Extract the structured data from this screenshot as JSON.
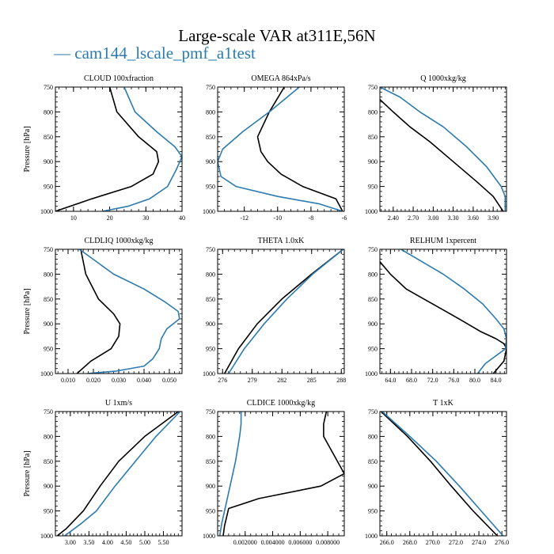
{
  "title": "Large-scale VAR at311E,56N",
  "legend_text": "— cam144_lscale_pmf_a1test",
  "colors": {
    "blue": "#2b7bb0",
    "black": "#000000"
  },
  "chart_data": [
    {
      "type": "line",
      "title": "CLOUD  100xfraction",
      "ylabel": "Pressure [hPa]",
      "xlim": [
        5,
        40
      ],
      "ylim": [
        1000,
        750
      ],
      "xticks": [
        10,
        20,
        30,
        40
      ],
      "xtick_labels": [
        "10",
        "20",
        "30",
        "40"
      ],
      "yticks": [
        750,
        800,
        850,
        900,
        950,
        1000
      ],
      "ytick_labels": [
        "750",
        "800",
        "850",
        "900",
        "950",
        "1000"
      ],
      "series": [
        {
          "name": "black",
          "x": [
            20,
            22,
            28,
            33,
            33.5,
            32,
            26,
            15,
            5
          ],
          "y": [
            750,
            800,
            850,
            880,
            900,
            925,
            950,
            975,
            1000
          ]
        },
        {
          "name": "blue",
          "x": [
            24,
            27,
            33,
            38,
            40,
            38.5,
            36,
            31,
            25,
            18
          ],
          "y": [
            750,
            800,
            840,
            870,
            890,
            915,
            950,
            975,
            990,
            1000
          ]
        }
      ]
    },
    {
      "type": "line",
      "title": "OMEGA  864xPa/s",
      "ylabel": "",
      "xlim": [
        -13.6,
        -6
      ],
      "ylim": [
        1000,
        750
      ],
      "xticks": [
        -12,
        -10,
        -8,
        -6
      ],
      "xtick_labels": [
        "-12",
        "-10",
        "-8",
        "-6"
      ],
      "yticks": [
        750,
        800,
        850,
        900,
        950,
        1000
      ],
      "ytick_labels": [
        "750",
        "800",
        "850",
        "900",
        "950",
        "1000"
      ],
      "series": [
        {
          "name": "black",
          "x": [
            -9.6,
            -10.5,
            -11.2,
            -11,
            -10.6,
            -9.8,
            -8.5,
            -6.5,
            -6.1
          ],
          "y": [
            750,
            800,
            850,
            880,
            900,
            925,
            950,
            975,
            1000
          ]
        },
        {
          "name": "blue",
          "x": [
            -8.7,
            -10.5,
            -12.1,
            -13.3,
            -13.6,
            -13.4,
            -12.5,
            -10,
            -7.5,
            -6.1
          ],
          "y": [
            750,
            800,
            840,
            875,
            900,
            930,
            950,
            970,
            985,
            1000
          ]
        }
      ]
    },
    {
      "type": "line",
      "title": "Q  1000xkg/kg",
      "ylabel": "",
      "xlim": [
        2.2,
        4.1
      ],
      "ylim": [
        1000,
        750
      ],
      "xticks": [
        2.4,
        2.7,
        3.0,
        3.3,
        3.6,
        3.9
      ],
      "xtick_labels": [
        "2.40",
        "2.70",
        "3.00",
        "3.30",
        "3.60",
        "3.90"
      ],
      "yticks": [
        750,
        800,
        850,
        900,
        950,
        1000
      ],
      "ytick_labels": [
        "750",
        "800",
        "850",
        "900",
        "950",
        "1000"
      ],
      "series": [
        {
          "name": "black",
          "x": [
            2.2,
            2.4,
            2.65,
            2.95,
            3.3,
            3.65,
            3.9,
            4.05
          ],
          "y": [
            775,
            800,
            830,
            860,
            900,
            940,
            970,
            1000
          ]
        },
        {
          "name": "blue",
          "x": [
            2.2,
            2.5,
            2.8,
            3.15,
            3.5,
            3.8,
            4.02,
            4.08,
            4.08
          ],
          "y": [
            750,
            770,
            800,
            830,
            870,
            910,
            950,
            970,
            1000
          ]
        }
      ]
    },
    {
      "type": "line",
      "title": "CLDLIQ  1000xkg/kg",
      "ylabel": "Pressure [hPa]",
      "xlim": [
        0.005,
        0.055
      ],
      "ylim": [
        1000,
        750
      ],
      "xticks": [
        0.01,
        0.02,
        0.03,
        0.04,
        0.05
      ],
      "xtick_labels": [
        "0.010",
        "0.020",
        "0.030",
        "0.040",
        "0.050"
      ],
      "yticks": [
        750,
        800,
        850,
        900,
        950,
        1000
      ],
      "ytick_labels": [
        "750",
        "800",
        "850",
        "900",
        "950",
        "1000"
      ],
      "series": [
        {
          "name": "black",
          "x": [
            0.015,
            0.017,
            0.022,
            0.028,
            0.0305,
            0.03,
            0.027,
            0.019,
            0.0135
          ],
          "y": [
            750,
            800,
            850,
            880,
            900,
            925,
            950,
            975,
            1000
          ]
        },
        {
          "name": "blue",
          "x": [
            0.0145,
            0.028,
            0.04,
            0.048,
            0.0535,
            0.054,
            0.049,
            0.0468,
            0.046,
            0.0435,
            0.04,
            0.029,
            0.0175
          ],
          "y": [
            750,
            800,
            830,
            855,
            875,
            890,
            910,
            930,
            950,
            970,
            985,
            995,
            1000
          ]
        }
      ]
    },
    {
      "type": "line",
      "title": "THETA  1.0xK",
      "ylabel": "",
      "xlim": [
        275.5,
        288.3
      ],
      "ylim": [
        1000,
        750
      ],
      "xticks": [
        276,
        279,
        282,
        285,
        288
      ],
      "xtick_labels": [
        "276",
        "279",
        "282",
        "285",
        "288"
      ],
      "yticks": [
        750,
        800,
        850,
        900,
        950,
        1000
      ],
      "ytick_labels": [
        "750",
        "800",
        "850",
        "900",
        "950",
        "1000"
      ],
      "series": [
        {
          "name": "black",
          "x": [
            288.2,
            285,
            282,
            279.5,
            277.6,
            276.2
          ],
          "y": [
            750,
            800,
            850,
            900,
            950,
            1000
          ]
        },
        {
          "name": "blue",
          "x": [
            288.2,
            285.1,
            282.5,
            280.2,
            278.2,
            276.6
          ],
          "y": [
            750,
            800,
            850,
            900,
            950,
            1000
          ]
        }
      ]
    },
    {
      "type": "line",
      "title": "RELHUM  1xpercent",
      "ylabel": "",
      "xlim": [
        62,
        86
      ],
      "ylim": [
        1000,
        750
      ],
      "xticks": [
        64,
        68,
        72,
        76,
        80,
        84
      ],
      "xtick_labels": [
        "64.0",
        "68.0",
        "72.0",
        "76.0",
        "80.0",
        "84.0"
      ],
      "yticks": [
        750,
        800,
        850,
        900,
        950,
        1000
      ],
      "ytick_labels": [
        "750",
        "800",
        "850",
        "900",
        "950",
        "1000"
      ],
      "series": [
        {
          "name": "black",
          "x": [
            62,
            64,
            67,
            72,
            77,
            81,
            84,
            85.5,
            86,
            85.5,
            83.5
          ],
          "y": [
            775,
            800,
            830,
            860,
            890,
            915,
            930,
            940,
            950,
            975,
            1000
          ]
        },
        {
          "name": "blue",
          "x": [
            66,
            70,
            74,
            78,
            81.5,
            84,
            85.5,
            86,
            85.8,
            82,
            80.5
          ],
          "y": [
            750,
            775,
            800,
            830,
            860,
            890,
            910,
            930,
            950,
            980,
            1000
          ]
        }
      ]
    },
    {
      "type": "line",
      "title": "U  1xm/s",
      "ylabel": "Pressure [hPa]",
      "xlim": [
        2.6,
        6.0
      ],
      "ylim": [
        1000,
        750
      ],
      "xticks": [
        3.0,
        3.5,
        4.0,
        4.5,
        5.0,
        5.5
      ],
      "xtick_labels": [
        "3.00",
        "3.50",
        "4.00",
        "4.50",
        "5.00",
        "5.50"
      ],
      "yticks": [
        750,
        800,
        850,
        900,
        950,
        1000
      ],
      "ytick_labels": [
        "750",
        "800",
        "850",
        "900",
        "950",
        "1000"
      ],
      "series": [
        {
          "name": "black",
          "x": [
            5.9,
            5.0,
            4.3,
            3.8,
            3.35,
            2.9,
            2.65
          ],
          "y": [
            750,
            800,
            850,
            900,
            950,
            985,
            1000
          ]
        },
        {
          "name": "blue",
          "x": [
            5.95,
            5.3,
            4.75,
            4.2,
            3.7,
            3.3,
            2.85
          ],
          "y": [
            750,
            800,
            850,
            900,
            950,
            975,
            1000
          ]
        }
      ]
    },
    {
      "type": "line",
      "title": "CLDICE  1000xkg/kg",
      "ylabel": "",
      "xlim": [
        0.0,
        0.0092
      ],
      "ylim": [
        1000,
        750
      ],
      "xticks": [
        0.002,
        0.004,
        0.006,
        0.008
      ],
      "xtick_labels": [
        "0.002000",
        "0.004000",
        "0.006000",
        "0.008000"
      ],
      "yticks": [
        750,
        800,
        850,
        900,
        950,
        1000
      ],
      "ytick_labels": [
        "750",
        "800",
        "850",
        "900",
        "950",
        "1000"
      ],
      "series": [
        {
          "name": "black",
          "x": [
            0.0079,
            0.0077,
            0.0077,
            0.0092,
            0.0075,
            0.003,
            0.0008,
            0.0005,
            0.0004
          ],
          "y": [
            750,
            775,
            800,
            875,
            900,
            925,
            945,
            980,
            1000
          ]
        },
        {
          "name": "blue",
          "x": [
            0.0017,
            0.0017,
            0.0016,
            0.0013,
            0.0009,
            0.0005,
            0.0003,
            0.00015
          ],
          "y": [
            750,
            775,
            800,
            850,
            900,
            950,
            975,
            1000
          ]
        }
      ]
    },
    {
      "type": "line",
      "title": "T  1xK",
      "ylabel": "",
      "xlim": [
        265.4,
        276.4
      ],
      "ylim": [
        1000,
        750
      ],
      "xticks": [
        266,
        268,
        270,
        272,
        274,
        276
      ],
      "xtick_labels": [
        "266.0",
        "268.0",
        "270.0",
        "272.0",
        "274.0",
        "276.0"
      ],
      "yticks": [
        750,
        800,
        850,
        900,
        950,
        1000
      ],
      "ytick_labels": [
        "750",
        "800",
        "850",
        "900",
        "950",
        "1000"
      ],
      "series": [
        {
          "name": "black",
          "x": [
            265.5,
            267.8,
            269.8,
            271.6,
            273.5,
            275.6
          ],
          "y": [
            750,
            800,
            850,
            900,
            950,
            1000
          ]
        },
        {
          "name": "blue",
          "x": [
            265.6,
            268,
            270.3,
            272.3,
            274.2,
            276.1
          ],
          "y": [
            750,
            800,
            850,
            900,
            950,
            1000
          ]
        }
      ]
    }
  ]
}
